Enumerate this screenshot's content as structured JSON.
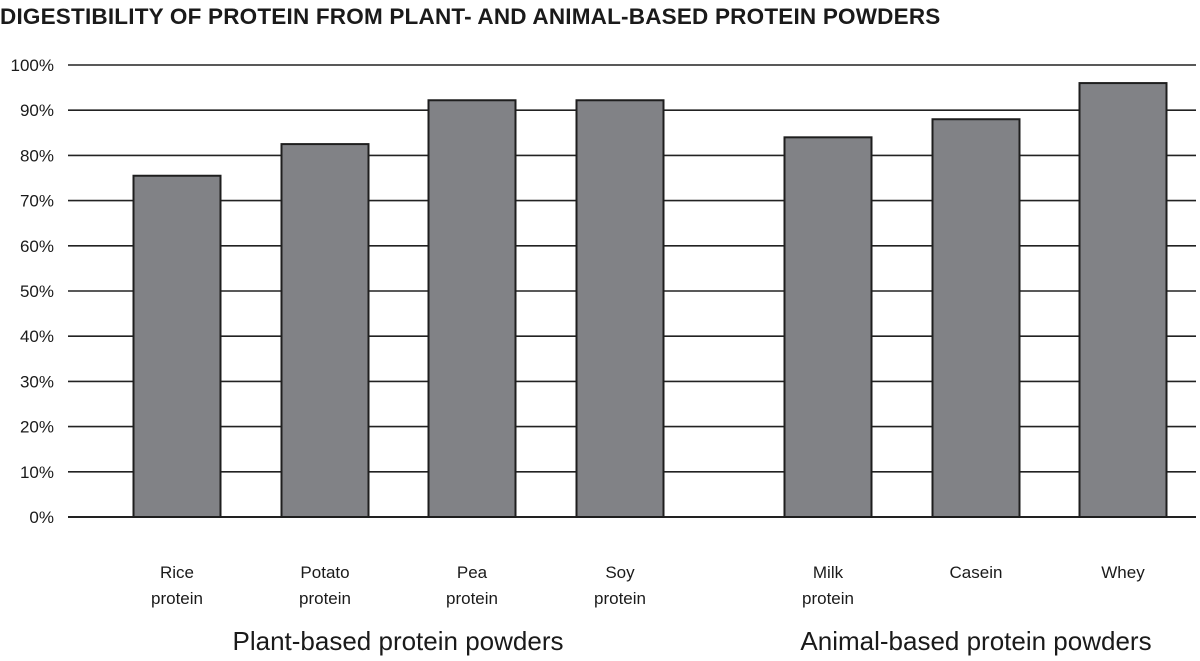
{
  "chart_data": {
    "type": "bar",
    "title": "DIGESTIBILITY OF PROTEIN FROM PLANT- AND ANIMAL-BASED PROTEIN POWDERS",
    "xlabel": "",
    "ylabel": "",
    "ylim": [
      0,
      100
    ],
    "yticks": [
      0,
      10,
      20,
      30,
      40,
      50,
      60,
      70,
      80,
      90,
      100
    ],
    "ytick_labels": [
      "0%",
      "10%",
      "20%",
      "30%",
      "40%",
      "50%",
      "60%",
      "70%",
      "80%",
      "90%",
      "100%"
    ],
    "grid": true,
    "bar_color": "#818286",
    "categories": [
      {
        "name": "Rice protein",
        "lines": [
          "Rice",
          "protein"
        ],
        "group": "plant"
      },
      {
        "name": "Potato protein",
        "lines": [
          "Potato",
          "protein"
        ],
        "group": "plant"
      },
      {
        "name": "Pea protein",
        "lines": [
          "Pea",
          "protein"
        ],
        "group": "plant"
      },
      {
        "name": "Soy protein",
        "lines": [
          "Soy",
          "protein"
        ],
        "group": "plant"
      },
      {
        "name": "Milk protein",
        "lines": [
          "Milk",
          "protein"
        ],
        "group": "animal"
      },
      {
        "name": "Casein",
        "lines": [
          "Casein"
        ],
        "group": "animal"
      },
      {
        "name": "Whey",
        "lines": [
          "Whey"
        ],
        "group": "animal"
      }
    ],
    "values": [
      75.5,
      82.5,
      92.2,
      92.2,
      84,
      88,
      96
    ],
    "groups": [
      {
        "id": "plant",
        "label": "Plant-based protein powders"
      },
      {
        "id": "animal",
        "label": "Animal-based protein powders"
      }
    ]
  }
}
